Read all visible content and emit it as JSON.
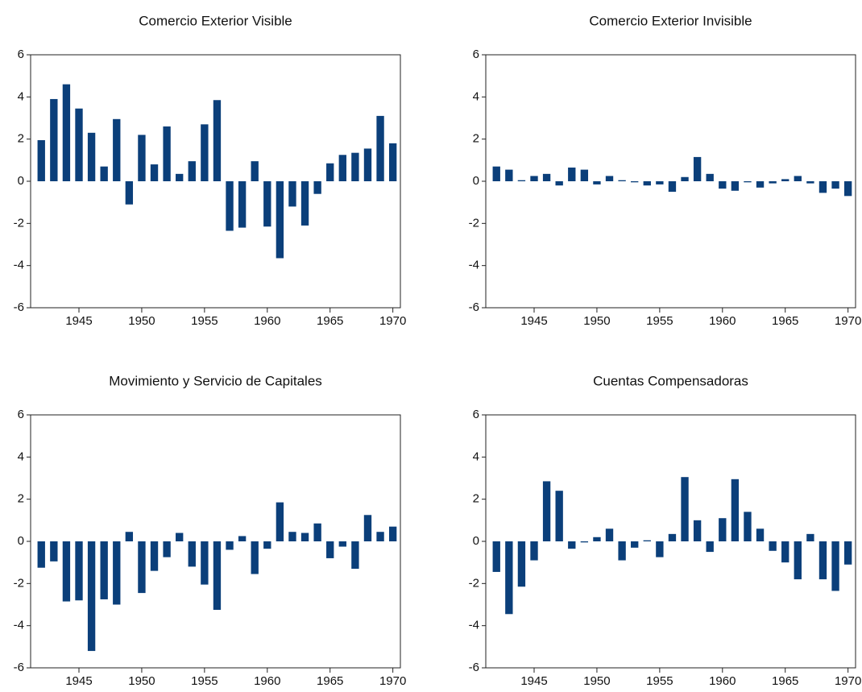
{
  "chart_data": [
    {
      "type": "bar",
      "title": "Comercio Exterior Visible",
      "color": "#0b3f7a",
      "x": [
        1942,
        1943,
        1944,
        1945,
        1946,
        1947,
        1948,
        1949,
        1950,
        1951,
        1952,
        1953,
        1954,
        1955,
        1956,
        1957,
        1958,
        1959,
        1960,
        1961,
        1962,
        1963,
        1964,
        1965,
        1966,
        1967,
        1968,
        1969,
        1970
      ],
      "values": [
        1.95,
        3.9,
        4.6,
        3.45,
        2.3,
        0.7,
        2.95,
        -1.1,
        2.2,
        0.8,
        2.6,
        0.35,
        0.95,
        2.7,
        3.85,
        -2.35,
        -2.2,
        0.95,
        -2.15,
        -3.65,
        -1.2,
        -2.1,
        -0.6,
        0.85,
        1.25,
        1.35,
        1.55,
        3.1,
        1.8
      ],
      "xlim": [
        1941.15,
        1970.6
      ],
      "ylim": [
        -6,
        6
      ],
      "xticks": [
        1945,
        1950,
        1955,
        1960,
        1965,
        1970
      ],
      "yticks": [
        -6,
        -4,
        -2,
        0,
        2,
        4,
        6
      ]
    },
    {
      "type": "bar",
      "title": "Comercio Exterior Invisible",
      "color": "#0b3f7a",
      "x": [
        1942,
        1943,
        1944,
        1945,
        1946,
        1947,
        1948,
        1949,
        1950,
        1951,
        1952,
        1953,
        1954,
        1955,
        1956,
        1957,
        1958,
        1959,
        1960,
        1961,
        1962,
        1963,
        1964,
        1965,
        1966,
        1967,
        1968,
        1969,
        1970
      ],
      "values": [
        0.7,
        0.55,
        0.05,
        0.25,
        0.35,
        -0.2,
        0.65,
        0.55,
        -0.15,
        0.25,
        0.05,
        -0.05,
        -0.2,
        -0.15,
        -0.5,
        0.2,
        1.15,
        0.35,
        -0.35,
        -0.45,
        -0.05,
        -0.3,
        -0.1,
        0.1,
        0.25,
        -0.1,
        -0.55,
        -0.35,
        -0.7
      ],
      "xlim": [
        1941.15,
        1970.6
      ],
      "ylim": [
        -6,
        6
      ],
      "xticks": [
        1945,
        1950,
        1955,
        1960,
        1965,
        1970
      ],
      "yticks": [
        -6,
        -4,
        -2,
        0,
        2,
        4,
        6
      ]
    },
    {
      "type": "bar",
      "title": "Movimiento y Servicio de Capitales",
      "color": "#0b3f7a",
      "x": [
        1942,
        1943,
        1944,
        1945,
        1946,
        1947,
        1948,
        1949,
        1950,
        1951,
        1952,
        1953,
        1954,
        1955,
        1956,
        1957,
        1958,
        1959,
        1960,
        1961,
        1962,
        1963,
        1964,
        1965,
        1966,
        1967,
        1968,
        1969,
        1970
      ],
      "values": [
        -1.25,
        -0.95,
        -2.85,
        -2.8,
        -5.2,
        -2.75,
        -3.0,
        0.45,
        -2.45,
        -1.4,
        -0.75,
        0.4,
        -1.2,
        -2.05,
        -3.25,
        -0.4,
        0.25,
        -1.55,
        -0.35,
        1.85,
        0.45,
        0.4,
        0.85,
        -0.8,
        -0.25,
        -1.3,
        1.25,
        0.45,
        0.7
      ],
      "xlim": [
        1941.15,
        1970.6
      ],
      "ylim": [
        -6,
        6
      ],
      "xticks": [
        1945,
        1950,
        1955,
        1960,
        1965,
        1970
      ],
      "yticks": [
        -6,
        -4,
        -2,
        0,
        2,
        4,
        6
      ]
    },
    {
      "type": "bar",
      "title": "Cuentas Compensadoras",
      "color": "#0b3f7a",
      "x": [
        1942,
        1943,
        1944,
        1945,
        1946,
        1947,
        1948,
        1949,
        1950,
        1951,
        1952,
        1953,
        1954,
        1955,
        1956,
        1957,
        1958,
        1959,
        1960,
        1961,
        1962,
        1963,
        1964,
        1965,
        1966,
        1967,
        1968,
        1969,
        1970
      ],
      "values": [
        -1.45,
        -3.45,
        -2.15,
        -0.9,
        2.85,
        2.4,
        -0.35,
        -0.05,
        0.2,
        0.6,
        -0.9,
        -0.3,
        0.05,
        -0.75,
        0.35,
        3.05,
        1.0,
        -0.5,
        1.1,
        2.95,
        1.4,
        0.6,
        -0.45,
        -1.0,
        -1.8,
        0.35,
        -1.8,
        -2.35,
        -1.1
      ],
      "xlim": [
        1941.15,
        1970.6
      ],
      "ylim": [
        -6,
        6
      ],
      "xticks": [
        1945,
        1950,
        1955,
        1960,
        1965,
        1970
      ],
      "yticks": [
        -6,
        -4,
        -2,
        0,
        2,
        4,
        6
      ]
    }
  ]
}
